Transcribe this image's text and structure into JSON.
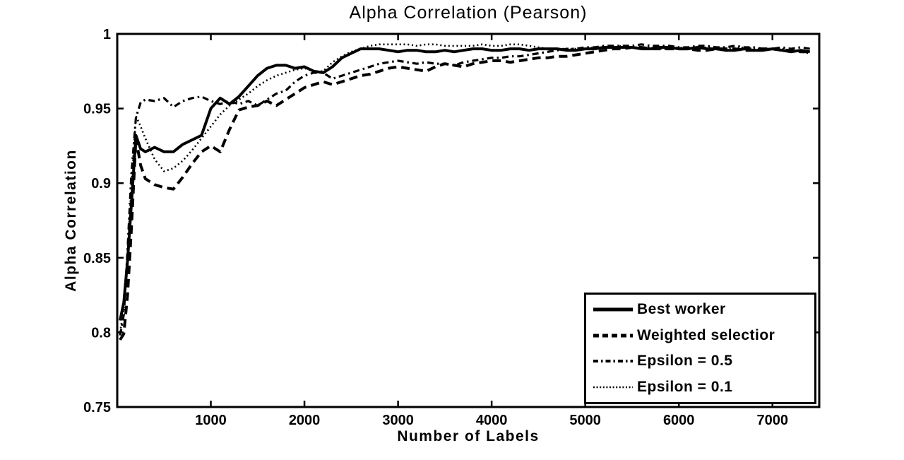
{
  "figure": {
    "background": "#ffffff",
    "ink_color": "#000000"
  },
  "chart_data": {
    "type": "line",
    "title": "Alpha Correlation (Pearson)",
    "xlabel": "Number of Labels",
    "ylabel": "Alpha Correlation",
    "xlim": [
      0,
      7500
    ],
    "ylim": [
      0.75,
      1.0
    ],
    "x_ticks": [
      1000,
      2000,
      3000,
      4000,
      5000,
      6000,
      7000
    ],
    "x_tick_labels": [
      "1000",
      "2000",
      "3000",
      "4000",
      "5000",
      "6000",
      "7000"
    ],
    "y_ticks": [
      0.75,
      0.8,
      0.85,
      0.9,
      0.95,
      1
    ],
    "y_tick_labels": [
      "0.75",
      "0.8",
      "0.85",
      "0.9",
      "0.95",
      "1"
    ],
    "grid": false,
    "legend_position": "bottom-right-inside",
    "series_color": "#000000",
    "x": [
      30,
      70,
      110,
      150,
      200,
      250,
      300,
      400,
      500,
      600,
      700,
      800,
      900,
      1000,
      1100,
      1200,
      1300,
      1400,
      1500,
      1600,
      1700,
      1800,
      1900,
      2000,
      2100,
      2200,
      2300,
      2400,
      2500,
      2600,
      2700,
      2800,
      2900,
      3000,
      3100,
      3200,
      3300,
      3400,
      3500,
      3600,
      3700,
      3800,
      3900,
      4000,
      4100,
      4200,
      4300,
      4400,
      4500,
      4600,
      4700,
      4800,
      4900,
      5000,
      5100,
      5200,
      5300,
      5400,
      5500,
      5600,
      5700,
      5800,
      5900,
      6000,
      6100,
      6200,
      6300,
      6400,
      6500,
      6600,
      6700,
      6800,
      6900,
      7000,
      7100,
      7200,
      7300,
      7400
    ],
    "series": [
      {
        "name": "Best worker",
        "line_style": "solid",
        "values": [
          0.808,
          0.82,
          0.848,
          0.885,
          0.932,
          0.923,
          0.921,
          0.924,
          0.921,
          0.921,
          0.926,
          0.929,
          0.932,
          0.95,
          0.957,
          0.953,
          0.958,
          0.965,
          0.972,
          0.977,
          0.979,
          0.979,
          0.977,
          0.978,
          0.975,
          0.974,
          0.978,
          0.984,
          0.987,
          0.99,
          0.99,
          0.99,
          0.989,
          0.988,
          0.989,
          0.989,
          0.988,
          0.988,
          0.989,
          0.988,
          0.989,
          0.99,
          0.99,
          0.989,
          0.989,
          0.99,
          0.99,
          0.989,
          0.99,
          0.99,
          0.99,
          0.989,
          0.989,
          0.99,
          0.99,
          0.991,
          0.991,
          0.991,
          0.991,
          0.99,
          0.99,
          0.991,
          0.991,
          0.99,
          0.99,
          0.991,
          0.99,
          0.99,
          0.989,
          0.989,
          0.99,
          0.989,
          0.989,
          0.99,
          0.989,
          0.988,
          0.989,
          0.988
        ]
      },
      {
        "name": "Weighted selectior",
        "line_style": "dashed",
        "values": [
          0.795,
          0.799,
          0.825,
          0.868,
          0.93,
          0.912,
          0.903,
          0.899,
          0.897,
          0.896,
          0.904,
          0.913,
          0.921,
          0.925,
          0.921,
          0.936,
          0.949,
          0.951,
          0.952,
          0.955,
          0.952,
          0.956,
          0.96,
          0.964,
          0.966,
          0.968,
          0.966,
          0.968,
          0.97,
          0.972,
          0.973,
          0.975,
          0.977,
          0.978,
          0.977,
          0.976,
          0.975,
          0.978,
          0.98,
          0.979,
          0.978,
          0.98,
          0.981,
          0.982,
          0.982,
          0.981,
          0.982,
          0.983,
          0.984,
          0.984,
          0.985,
          0.985,
          0.986,
          0.987,
          0.988,
          0.989,
          0.99,
          0.99,
          0.991,
          0.991,
          0.99,
          0.99,
          0.99,
          0.99,
          0.99,
          0.989,
          0.989,
          0.99,
          0.99,
          0.99,
          0.989,
          0.989,
          0.99,
          0.99,
          0.989,
          0.989,
          0.988,
          0.988
        ]
      },
      {
        "name": "Epsilon = 0.5",
        "line_style": "dash-dot",
        "values": [
          0.798,
          0.812,
          0.855,
          0.905,
          0.944,
          0.954,
          0.956,
          0.955,
          0.957,
          0.951,
          0.955,
          0.957,
          0.958,
          0.955,
          0.953,
          0.955,
          0.953,
          0.955,
          0.952,
          0.956,
          0.96,
          0.962,
          0.968,
          0.972,
          0.974,
          0.974,
          0.97,
          0.972,
          0.974,
          0.976,
          0.978,
          0.98,
          0.981,
          0.982,
          0.981,
          0.98,
          0.981,
          0.98,
          0.98,
          0.979,
          0.981,
          0.982,
          0.983,
          0.984,
          0.984,
          0.985,
          0.985,
          0.986,
          0.987,
          0.988,
          0.989,
          0.99,
          0.99,
          0.991,
          0.991,
          0.992,
          0.992,
          0.992,
          0.992,
          0.993,
          0.992,
          0.992,
          0.992,
          0.991,
          0.991,
          0.992,
          0.992,
          0.991,
          0.991,
          0.992,
          0.991,
          0.991,
          0.99,
          0.99,
          0.991,
          0.99,
          0.991,
          0.99
        ]
      },
      {
        "name": "Epsilon = 0.1",
        "line_style": "dotted",
        "values": [
          0.8,
          0.816,
          0.852,
          0.898,
          0.945,
          0.938,
          0.93,
          0.916,
          0.908,
          0.91,
          0.915,
          0.922,
          0.93,
          0.938,
          0.946,
          0.952,
          0.956,
          0.96,
          0.965,
          0.969,
          0.972,
          0.974,
          0.976,
          0.977,
          0.975,
          0.975,
          0.981,
          0.985,
          0.988,
          0.99,
          0.992,
          0.993,
          0.993,
          0.993,
          0.993,
          0.992,
          0.993,
          0.993,
          0.992,
          0.992,
          0.992,
          0.992,
          0.993,
          0.992,
          0.992,
          0.993,
          0.993,
          0.992,
          0.991,
          0.99,
          0.99,
          0.99,
          0.99,
          0.99,
          0.991,
          0.991,
          0.991,
          0.992,
          0.991,
          0.991,
          0.991,
          0.99,
          0.99,
          0.991,
          0.99,
          0.99,
          0.991,
          0.99,
          0.99,
          0.99,
          0.991,
          0.99,
          0.99,
          0.99,
          0.99,
          0.989,
          0.988,
          0.987
        ]
      }
    ]
  }
}
